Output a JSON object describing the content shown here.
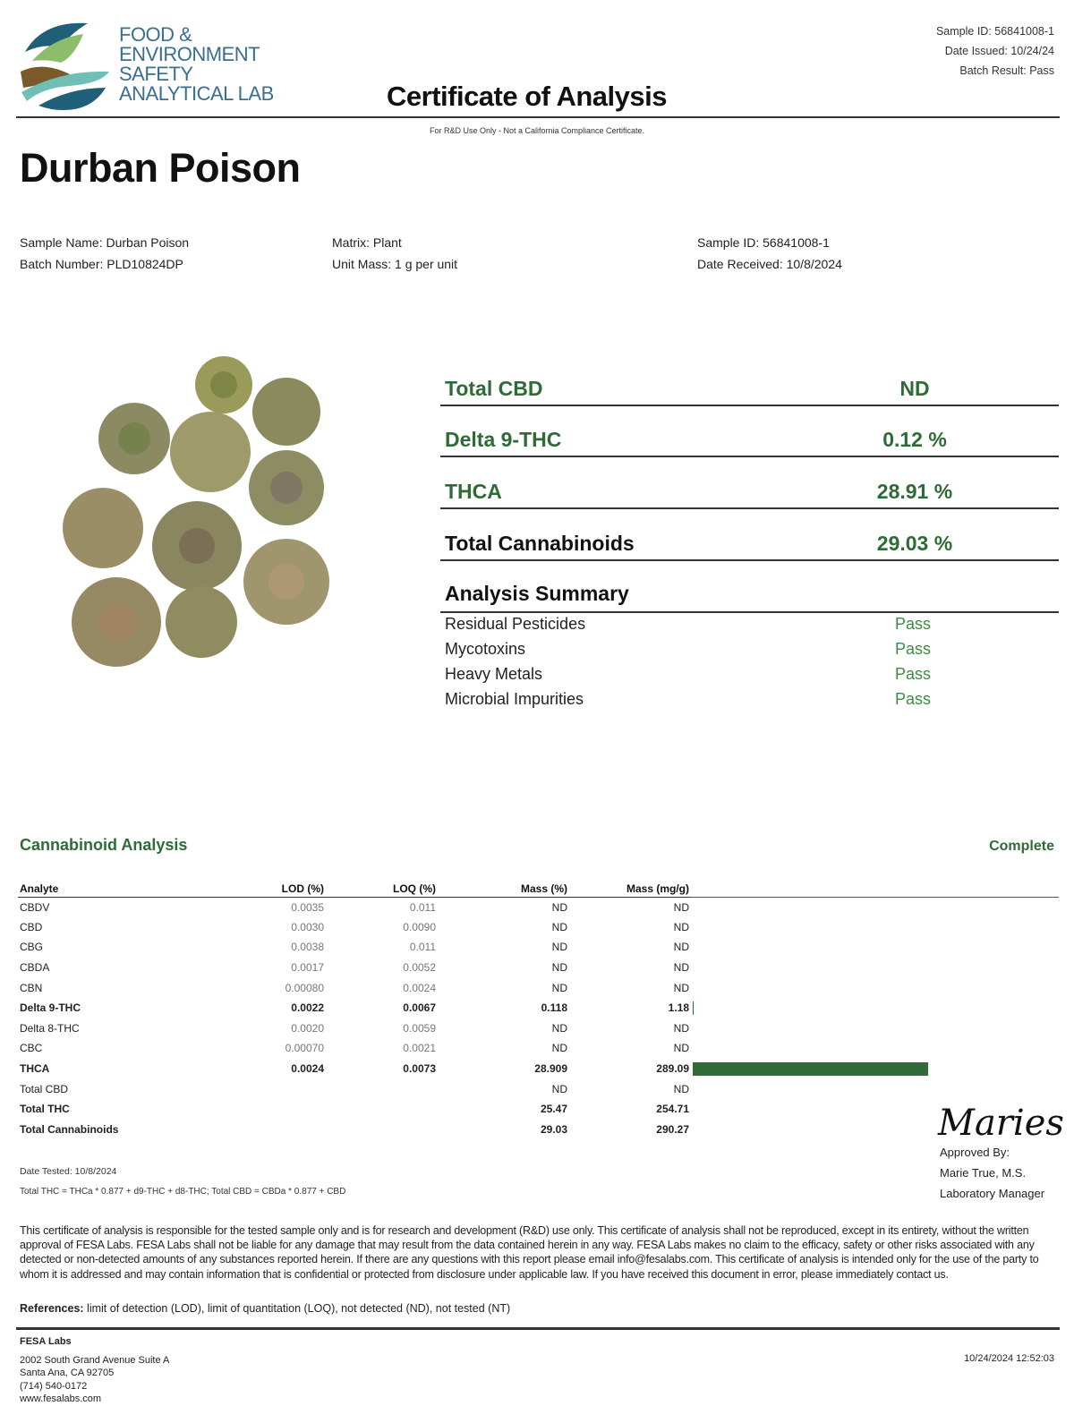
{
  "header": {
    "logo_lines": [
      "FOOD &",
      "ENVIRONMENT",
      "SAFETY",
      "ANALYTICAL LAB"
    ],
    "title": "Certificate of Analysis",
    "sample_id": "Sample ID: 56841008-1",
    "date_issued": "Date Issued: 10/24/24",
    "batch_result": "Batch Result: Pass",
    "note": "For R&D Use Only - Not a California Compliance Certificate."
  },
  "product_name": "Durban Poison",
  "info": {
    "sample_name": "Sample Name: Durban Poison",
    "batch_number": "Batch Number: PLD10824DP",
    "matrix": "Matrix: Plant",
    "unit_mass": "Unit Mass: 1 g per unit",
    "sample_id": "Sample ID: 56841008-1",
    "date_received": "Date Received: 10/8/2024"
  },
  "summary": [
    {
      "label": "Total CBD",
      "value": "ND"
    },
    {
      "label": "Delta 9-THC",
      "value": "0.12 %"
    },
    {
      "label": "THCA",
      "value": "28.91 %"
    },
    {
      "label": "Total Cannabinoids",
      "value": "29.03 %"
    }
  ],
  "analysis_summary": {
    "title": "Analysis Summary",
    "items": [
      {
        "label": "Residual Pesticides",
        "result": "Pass"
      },
      {
        "label": "Mycotoxins",
        "result": "Pass"
      },
      {
        "label": "Heavy Metals",
        "result": "Pass"
      },
      {
        "label": "Microbial Impurities",
        "result": "Pass"
      }
    ]
  },
  "cannabinoid": {
    "title": "Cannabinoid Analysis",
    "status": "Complete",
    "columns": [
      "Analyte",
      "LOD (%)",
      "LOQ (%)",
      "Mass (%)",
      "Mass (mg/g)"
    ],
    "rows": [
      [
        "CBDV",
        "0.0035",
        "0.011",
        "ND",
        "ND"
      ],
      [
        "CBD",
        "0.0030",
        "0.0090",
        "ND",
        "ND"
      ],
      [
        "CBG",
        "0.0038",
        "0.011",
        "ND",
        "ND"
      ],
      [
        "CBDA",
        "0.0017",
        "0.0052",
        "ND",
        "ND"
      ],
      [
        "CBN",
        "0.00080",
        "0.0024",
        "ND",
        "ND"
      ],
      [
        "Delta 9-THC",
        "0.0022",
        "0.0067",
        "0.118",
        "1.18"
      ],
      [
        "Delta 8-THC",
        "0.0020",
        "0.0059",
        "ND",
        "ND"
      ],
      [
        "CBC",
        "0.00070",
        "0.0021",
        "ND",
        "ND"
      ],
      [
        "THCA",
        "0.0024",
        "0.0073",
        "28.909",
        "289.09"
      ],
      [
        "Total CBD",
        "",
        "",
        "ND",
        "ND"
      ],
      [
        "Total THC",
        "",
        "",
        "25.47",
        "254.71"
      ],
      [
        "Total Cannabinoids",
        "",
        "",
        "29.03",
        "290.27"
      ]
    ],
    "bold_rows": [
      5,
      8,
      10,
      11
    ],
    "bar_max_mg_g": 289.09,
    "bar_color": "#2e6b36",
    "date_tested": "Date Tested: 10/8/2024",
    "formula": "Total THC = THCa * 0.877 + d9-THC + d8-THC; Total CBD = CBDa * 0.877 + CBD"
  },
  "approval": {
    "signature": "Maries",
    "approved_by": "Approved By:",
    "name": "Marie True, M.S.",
    "role": "Laboratory Manager"
  },
  "disclaimer": "This certificate of analysis is responsible for the tested sample only and is for research and development (R&D) use only. This certificate of analysis shall not be reproduced, except in its entirety, without the written approval of FESA Labs. FESA Labs shall not be liable for any damage that may result from the data contained herein in any way. FESA Labs makes no claim to the efficacy, safety or other risks associated with any detected or non-detected amounts of any substances reported herein. If there are any questions with this report please email info@fesalabs.com. This certificate of analysis is intended only for the use of the party to whom it is addressed and may contain information that is confidential or protected from disclosure under applicable law. If you have received this document in error, please immediately contact us.",
  "references": {
    "label": "References:",
    "text": " limit of detection (LOD), limit of quantitation (LOQ), not detected (ND), not tested (NT)"
  },
  "footer": {
    "company": "FESA Labs",
    "address1": "2002 South Grand Avenue Suite A",
    "address2": "Santa Ana, CA 92705",
    "phone": "(714) 540-0172",
    "website": "www.fesalabs.com",
    "timestamp": "10/24/2024 12:52:03"
  }
}
